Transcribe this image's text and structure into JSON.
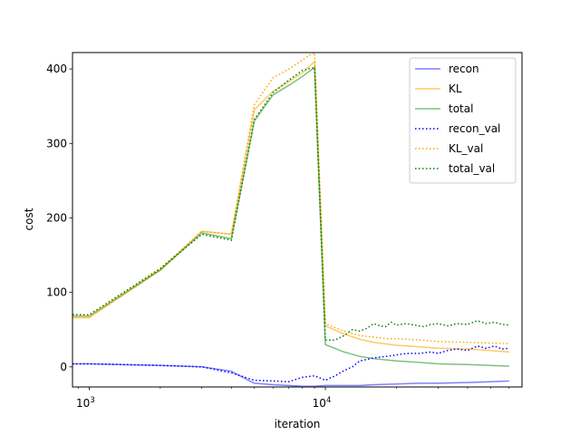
{
  "chart_data": {
    "type": "line",
    "xlabel": "iteration",
    "ylabel": "cost",
    "xscale": "log",
    "xlim": [
      850,
      68000
    ],
    "ylim": [
      -27,
      422
    ],
    "x_ticks": [
      {
        "value": 1000,
        "base": "10",
        "exp": "3"
      },
      {
        "value": 10000,
        "base": "10",
        "exp": "4"
      }
    ],
    "y_ticks": [
      0,
      100,
      200,
      300,
      400
    ],
    "grid": false,
    "legend_location": "top-right",
    "series": [
      {
        "name": "recon",
        "color": "#0000ff",
        "style": "solid",
        "alpha": 0.5,
        "x": [
          850,
          1000,
          2000,
          3000,
          4000,
          5000,
          6000,
          7000,
          8000,
          9000,
          10000,
          12000,
          14000,
          16000,
          20000,
          25000,
          30000,
          40000,
          50000,
          60000
        ],
        "y": [
          4,
          4,
          2,
          0,
          -6,
          -22,
          -24,
          -25,
          -26,
          -26,
          -25,
          -25,
          -25,
          -24,
          -23,
          -22,
          -22,
          -21,
          -20,
          -19
        ]
      },
      {
        "name": "KL",
        "color": "#ffa500",
        "style": "solid",
        "alpha": 0.6,
        "x": [
          850,
          1000,
          2000,
          3000,
          4000,
          5000,
          6000,
          7000,
          8000,
          9000,
          9000,
          10000,
          12000,
          14000,
          16000,
          20000,
          25000,
          30000,
          40000,
          50000,
          60000
        ],
        "y": [
          66,
          66,
          130,
          182,
          178,
          345,
          370,
          383,
          395,
          410,
          410,
          55,
          44,
          37,
          33,
          29,
          27,
          25,
          24,
          22,
          20
        ]
      },
      {
        "name": "total",
        "color": "#008000",
        "style": "solid",
        "alpha": 0.5,
        "x": [
          850,
          1000,
          2000,
          3000,
          4000,
          5000,
          6000,
          7000,
          8000,
          9000,
          9000,
          10000,
          12000,
          14000,
          16000,
          20000,
          25000,
          30000,
          40000,
          50000,
          60000
        ],
        "y": [
          68,
          68,
          130,
          180,
          172,
          330,
          365,
          378,
          390,
          402,
          402,
          30,
          20,
          14,
          11,
          8,
          6,
          4,
          3,
          2,
          1
        ]
      },
      {
        "name": "recon_val",
        "color": "#0000ff",
        "style": "dotted",
        "alpha": 1.0,
        "x": [
          850,
          1000,
          2000,
          3000,
          4000,
          5000,
          6000,
          7000,
          8000,
          9000,
          10000,
          11000,
          12000,
          13000,
          14000,
          15000,
          16000,
          18000,
          20000,
          22000,
          25000,
          28000,
          30000,
          33000,
          36000,
          40000,
          44000,
          48000,
          52000,
          56000,
          60000
        ],
        "y": [
          4,
          4,
          2,
          0,
          -8,
          -18,
          -19,
          -20,
          -14,
          -12,
          -18,
          -12,
          -5,
          0,
          8,
          10,
          12,
          14,
          16,
          18,
          18,
          20,
          18,
          22,
          24,
          22,
          28,
          25,
          28,
          24,
          25
        ]
      },
      {
        "name": "KL_val",
        "color": "#ffa500",
        "style": "dotted",
        "alpha": 1.0,
        "x": [
          850,
          1000,
          2000,
          3000,
          4000,
          5000,
          6000,
          7000,
          8000,
          8500,
          9000,
          9000,
          10000,
          12000,
          14000,
          16000,
          18000,
          20000,
          25000,
          30000,
          40000,
          50000,
          60000
        ],
        "y": [
          68,
          68,
          132,
          182,
          178,
          352,
          388,
          400,
          412,
          418,
          422,
          422,
          58,
          48,
          42,
          40,
          38,
          38,
          36,
          34,
          33,
          32,
          31
        ]
      },
      {
        "name": "total_val",
        "color": "#008000",
        "style": "dotted",
        "alpha": 1.0,
        "x": [
          850,
          1000,
          2000,
          3000,
          4000,
          5000,
          6000,
          7000,
          8000,
          9000,
          9000,
          10000,
          11000,
          12000,
          13000,
          14000,
          15000,
          16000,
          17000,
          18000,
          19000,
          20000,
          22000,
          24000,
          26000,
          28000,
          30000,
          33000,
          36000,
          40000,
          44000,
          48000,
          52000,
          56000,
          60000
        ],
        "y": [
          70,
          70,
          132,
          178,
          170,
          332,
          368,
          385,
          398,
          402,
          402,
          36,
          36,
          42,
          50,
          48,
          52,
          58,
          55,
          54,
          60,
          56,
          58,
          56,
          54,
          57,
          58,
          55,
          58,
          57,
          62,
          58,
          60,
          57,
          56
        ]
      }
    ]
  }
}
